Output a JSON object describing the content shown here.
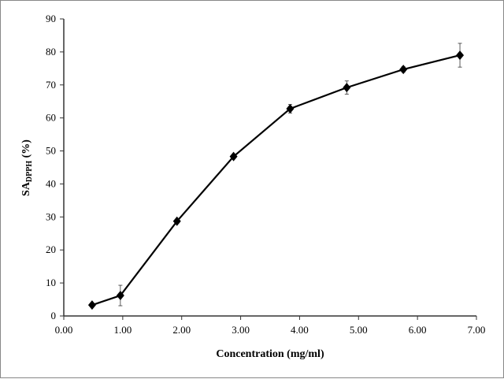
{
  "chart_data": {
    "type": "line",
    "title": "",
    "xlabel": "Concentration (mg/ml)",
    "ylabel_main": "SA",
    "ylabel_sub": "DPPH",
    "ylabel_suffix": " (%)",
    "xlim": [
      0,
      7
    ],
    "ylim": [
      0,
      90
    ],
    "x_ticks": [
      "0.00",
      "1.00",
      "2.00",
      "3.00",
      "4.00",
      "5.00",
      "6.00",
      "7.00"
    ],
    "y_ticks": [
      "0",
      "10",
      "20",
      "30",
      "40",
      "50",
      "60",
      "70",
      "80",
      "90"
    ],
    "grid": false,
    "marker": "diamond",
    "series": [
      {
        "x": [
          0.48,
          0.96,
          1.92,
          2.88,
          3.84,
          4.8,
          5.76,
          6.72
        ],
        "y": [
          3.3,
          6.2,
          28.7,
          48.3,
          62.8,
          69.2,
          74.7,
          79.0
        ],
        "error": [
          0.5,
          3.1,
          0.6,
          0.6,
          1.3,
          2.0,
          0.8,
          3.6
        ],
        "color": "#000000"
      }
    ]
  }
}
